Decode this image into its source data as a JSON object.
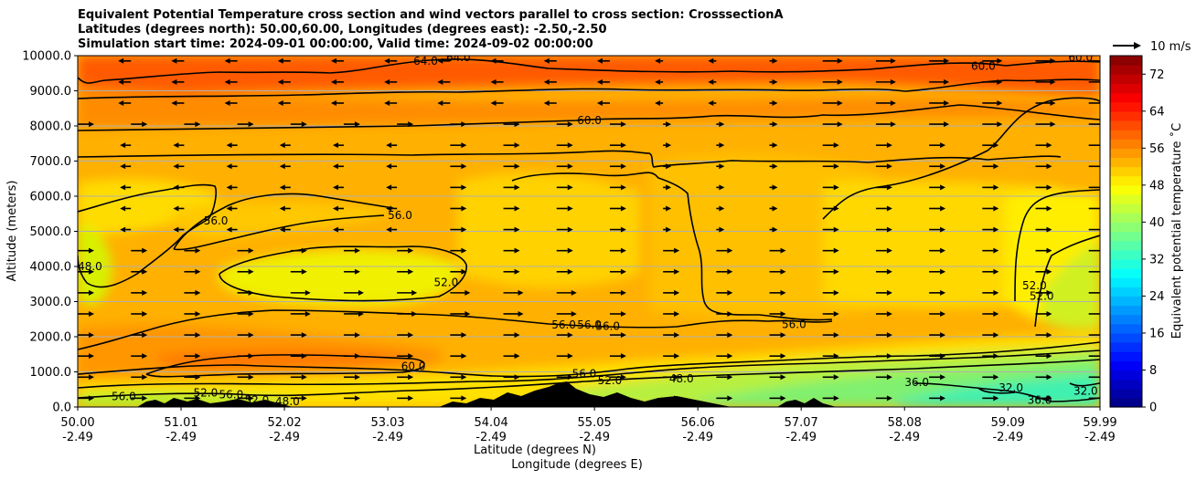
{
  "title": {
    "line1": "Equivalent Potential Temperature cross section and wind vectors parallel to cross section: CrosssectionA",
    "line2": "Latitudes (degrees north): 50.00,60.00, Longitudes (degrees east): -2.50,-2.50",
    "line3": "Simulation start time: 2024-09-01 00:00:00, Valid time: 2024-09-02 00:00:00"
  },
  "chart_data": {
    "type": "contourf",
    "xlabel": "Latitude (degrees N)",
    "xlabel2": "Longitude (degrees E)",
    "ylabel": "Altitude (meters)",
    "ylim": [
      0,
      10000
    ],
    "xlim": [
      50.0,
      59.99
    ],
    "yticks": [
      0,
      1000,
      2000,
      3000,
      4000,
      5000,
      6000,
      7000,
      8000,
      9000,
      10000
    ],
    "ytick_labels": [
      "0.0",
      "1000.0",
      "2000.0",
      "3000.0",
      "4000.0",
      "5000.0",
      "6000.0",
      "7000.0",
      "8000.0",
      "9000.0",
      "10000.0"
    ],
    "xticks": [
      {
        "lat": 50.0,
        "lat_label": "50.00",
        "lon_label": "-2.49"
      },
      {
        "lat": 51.01,
        "lat_label": "51.01",
        "lon_label": "-2.49"
      },
      {
        "lat": 52.02,
        "lat_label": "52.02",
        "lon_label": "-2.49"
      },
      {
        "lat": 53.03,
        "lat_label": "53.03",
        "lon_label": "-2.49"
      },
      {
        "lat": 54.04,
        "lat_label": "54.04",
        "lon_label": "-2.49"
      },
      {
        "lat": 55.05,
        "lat_label": "55.05",
        "lon_label": "-2.49"
      },
      {
        "lat": 56.06,
        "lat_label": "56.06",
        "lon_label": "-2.49"
      },
      {
        "lat": 57.07,
        "lat_label": "57.07",
        "lon_label": "-2.49"
      },
      {
        "lat": 58.08,
        "lat_label": "58.08",
        "lon_label": "-2.49"
      },
      {
        "lat": 59.09,
        "lat_label": "59.09",
        "lon_label": "-2.49"
      },
      {
        "lat": 59.99,
        "lat_label": "59.99",
        "lon_label": "-2.49"
      }
    ],
    "colorbar": {
      "label": "Equivalent potential temperature ˚C",
      "min": 0,
      "max": 76,
      "step": 2,
      "ticks": [
        0,
        8,
        16,
        24,
        32,
        40,
        48,
        56,
        64,
        72
      ]
    },
    "quiver_key": "10 m/s",
    "contour_labels": [
      {
        "text": "64.0",
        "lat": 53.4,
        "alt": 9850
      },
      {
        "text": "64.0",
        "lat": 53.72,
        "alt": 9950
      },
      {
        "text": "60.0",
        "lat": 59.8,
        "alt": 9950
      },
      {
        "text": "60.0",
        "lat": 58.85,
        "alt": 9700
      },
      {
        "text": "60.0",
        "lat": 55.0,
        "alt": 8150
      },
      {
        "text": "56.0",
        "lat": 51.35,
        "alt": 5300
      },
      {
        "text": "56.0",
        "lat": 53.15,
        "alt": 5450
      },
      {
        "text": "48.0",
        "lat": 50.12,
        "alt": 4000
      },
      {
        "text": "52.0",
        "lat": 53.6,
        "alt": 3550
      },
      {
        "text": "56.0",
        "lat": 54.75,
        "alt": 2340
      },
      {
        "text": "56.0",
        "lat": 55.0,
        "alt": 2340
      },
      {
        "text": "56.0",
        "lat": 55.18,
        "alt": 2300
      },
      {
        "text": "56.0",
        "lat": 57.0,
        "alt": 2350
      },
      {
        "text": "52.0",
        "lat": 59.35,
        "alt": 3450
      },
      {
        "text": "52.0",
        "lat": 59.42,
        "alt": 3150
      },
      {
        "text": "60.0",
        "lat": 53.28,
        "alt": 1150
      },
      {
        "text": "56.0",
        "lat": 54.95,
        "alt": 950
      },
      {
        "text": "52.0",
        "lat": 55.2,
        "alt": 750
      },
      {
        "text": "48.0",
        "lat": 55.9,
        "alt": 800
      },
      {
        "text": "36.0",
        "lat": 58.2,
        "alt": 700
      },
      {
        "text": "32.0",
        "lat": 59.12,
        "alt": 550
      },
      {
        "text": "36.0",
        "lat": 59.4,
        "alt": 200
      },
      {
        "text": "32.0",
        "lat": 59.85,
        "alt": 450
      },
      {
        "text": "56.0",
        "lat": 50.45,
        "alt": 300
      },
      {
        "text": "52.0",
        "lat": 51.25,
        "alt": 400
      },
      {
        "text": "56.0",
        "lat": 51.5,
        "alt": 350
      },
      {
        "text": "52.0",
        "lat": 51.75,
        "alt": 200
      },
      {
        "text": "48.0",
        "lat": 52.05,
        "alt": 150
      }
    ]
  }
}
